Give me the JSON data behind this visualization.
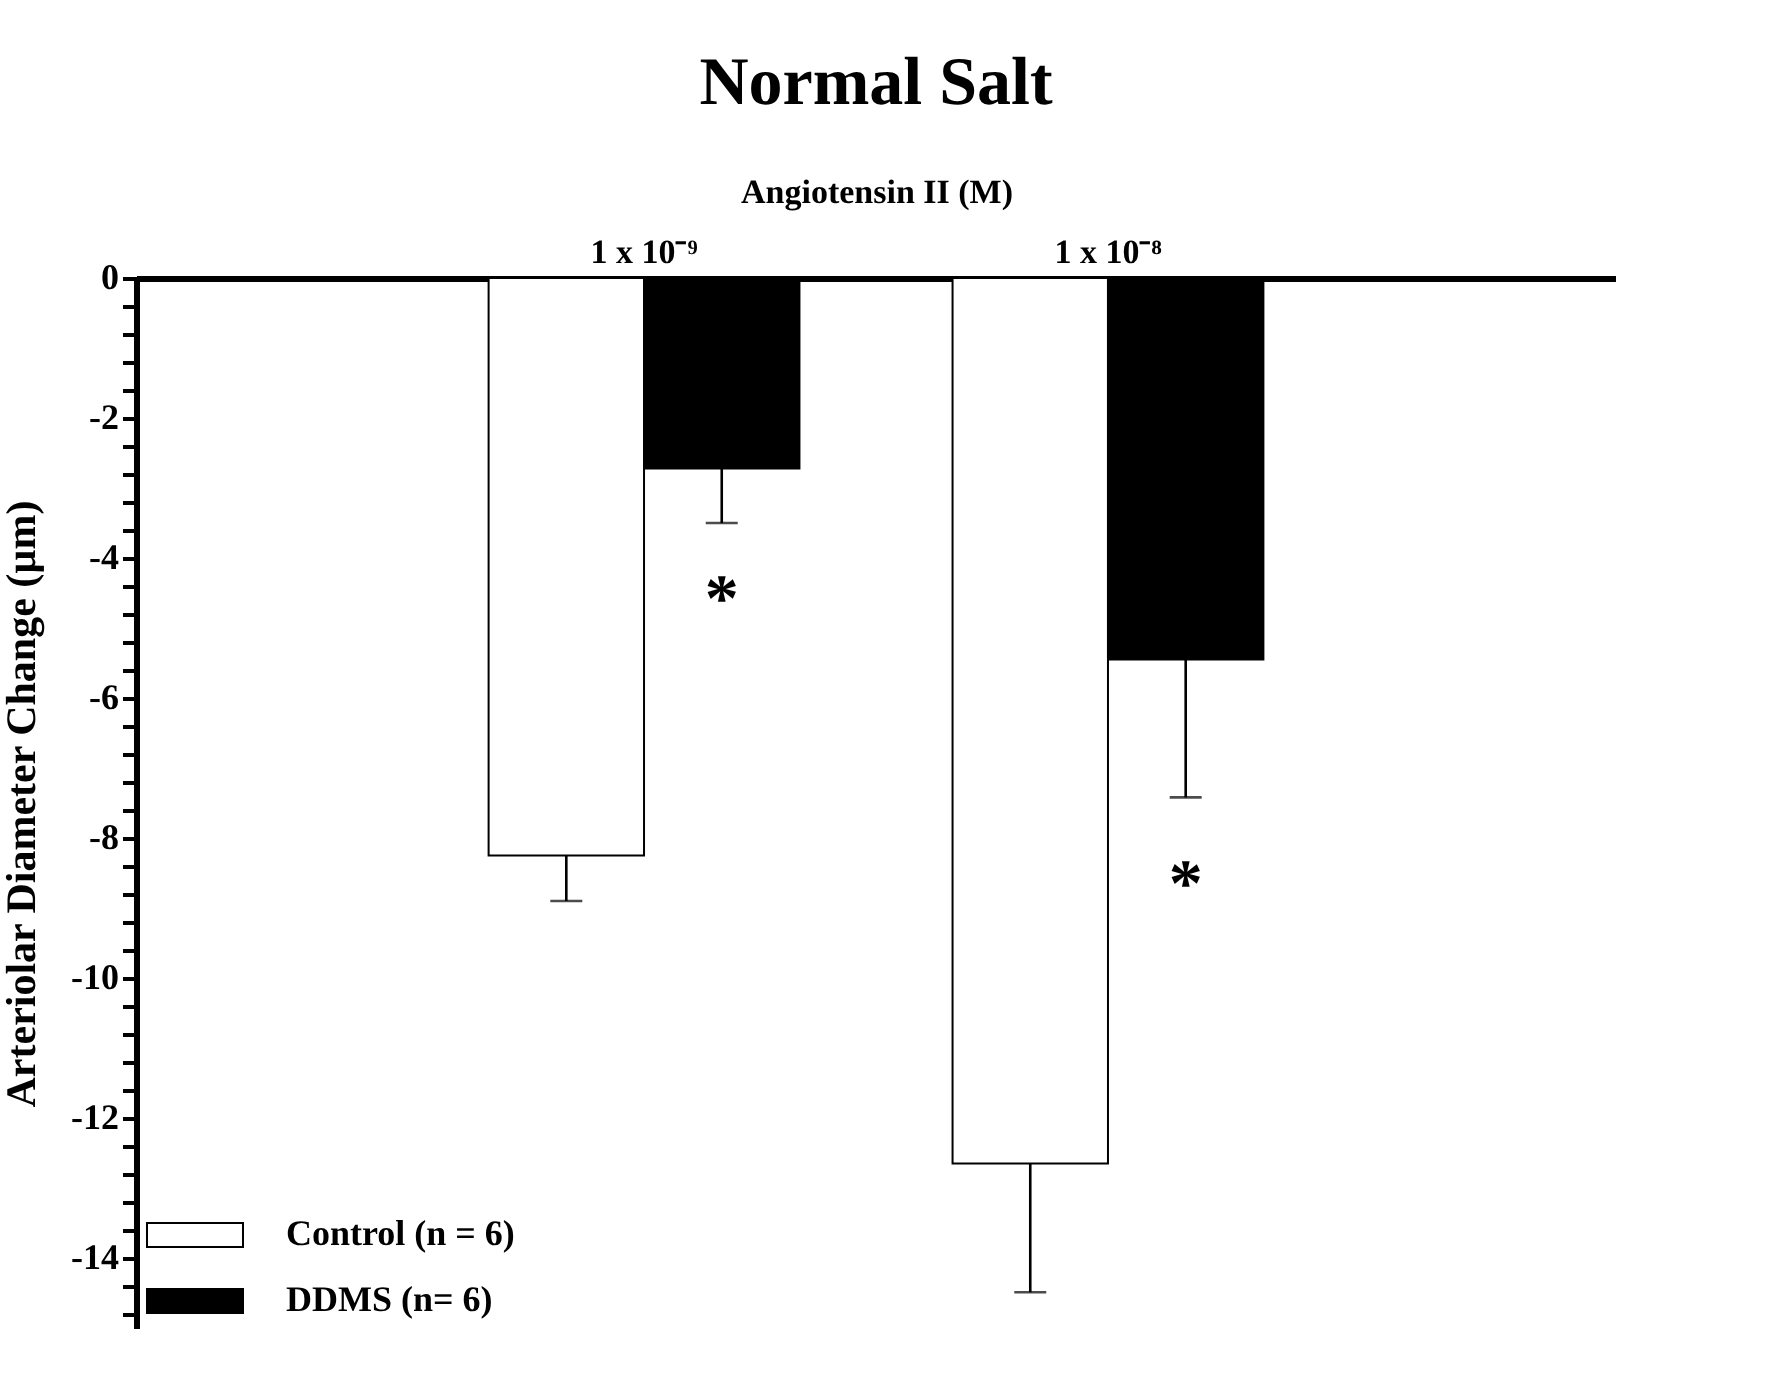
{
  "chart_data": {
    "type": "bar",
    "title": "Normal Salt",
    "xlabel": "Angiotensin II (M)",
    "ylabel": "Arteriolar Diameter Change (µm)",
    "categories": [
      "1 x 10⁻⁹",
      "1 x 10⁻⁸"
    ],
    "series": [
      {
        "name": "Control  (n = 6)",
        "color": "#ffffff",
        "values": [
          -8.25,
          -12.65
        ],
        "errors": [
          [
            -8.9,
            -8.25
          ],
          [
            -14.49,
            -12.65
          ]
        ]
      },
      {
        "name": "DDMS (n= 6)",
        "color": "#000000",
        "values": [
          -2.72,
          -5.45
        ],
        "errors": [
          [
            -3.5,
            -2.72
          ],
          [
            -7.42,
            -5.45
          ]
        ]
      }
    ],
    "ylim": [
      -15,
      0
    ],
    "yticks": [
      0,
      {
        "value": -0.4,
        "label": null
      },
      {
        "value": -0.8,
        "label": null
      },
      {
        "value": -1.2,
        "label": null
      },
      {
        "value": -1.6,
        "label": null
      },
      -2,
      {
        "value": -2.4,
        "label": null
      },
      {
        "value": -2.8,
        "label": null
      },
      {
        "value": -3.2,
        "label": null
      },
      {
        "value": -3.6,
        "label": null
      },
      -4,
      {
        "value": -4.4,
        "label": null
      },
      {
        "value": -4.8,
        "label": null
      },
      {
        "value": -5.2,
        "label": null
      },
      {
        "value": -5.6,
        "label": null
      },
      -6,
      {
        "value": -6.4,
        "label": null
      },
      {
        "value": -6.8,
        "label": null
      },
      {
        "value": -7.2,
        "label": null
      },
      {
        "value": -7.6,
        "label": null
      },
      -8,
      {
        "value": -8.4,
        "label": null
      },
      {
        "value": -8.8,
        "label": null
      },
      {
        "value": -9.2,
        "label": null
      },
      {
        "value": -9.6,
        "label": null
      },
      -10,
      {
        "value": -10.4,
        "label": null
      },
      {
        "value": -10.8,
        "label": null
      },
      {
        "value": -11.2,
        "label": null
      },
      {
        "value": -11.6,
        "label": null
      },
      -12,
      {
        "value": -12.4,
        "label": null
      },
      {
        "value": -12.8,
        "label": null
      },
      {
        "value": -13.2,
        "label": null
      },
      {
        "value": -13.6,
        "label": null
      },
      -14,
      {
        "value": -14.4,
        "label": null
      },
      {
        "value": -14.8,
        "label": null
      }
    ],
    "grid": false,
    "legend": "bottom left",
    "annotations": [
      {
        "text": "*",
        "x": "1 x 10⁻⁹",
        "y": -4.39
      },
      {
        "text": "*",
        "x": "1 x 10⁻⁸",
        "y": -8.46
      }
    ]
  }
}
